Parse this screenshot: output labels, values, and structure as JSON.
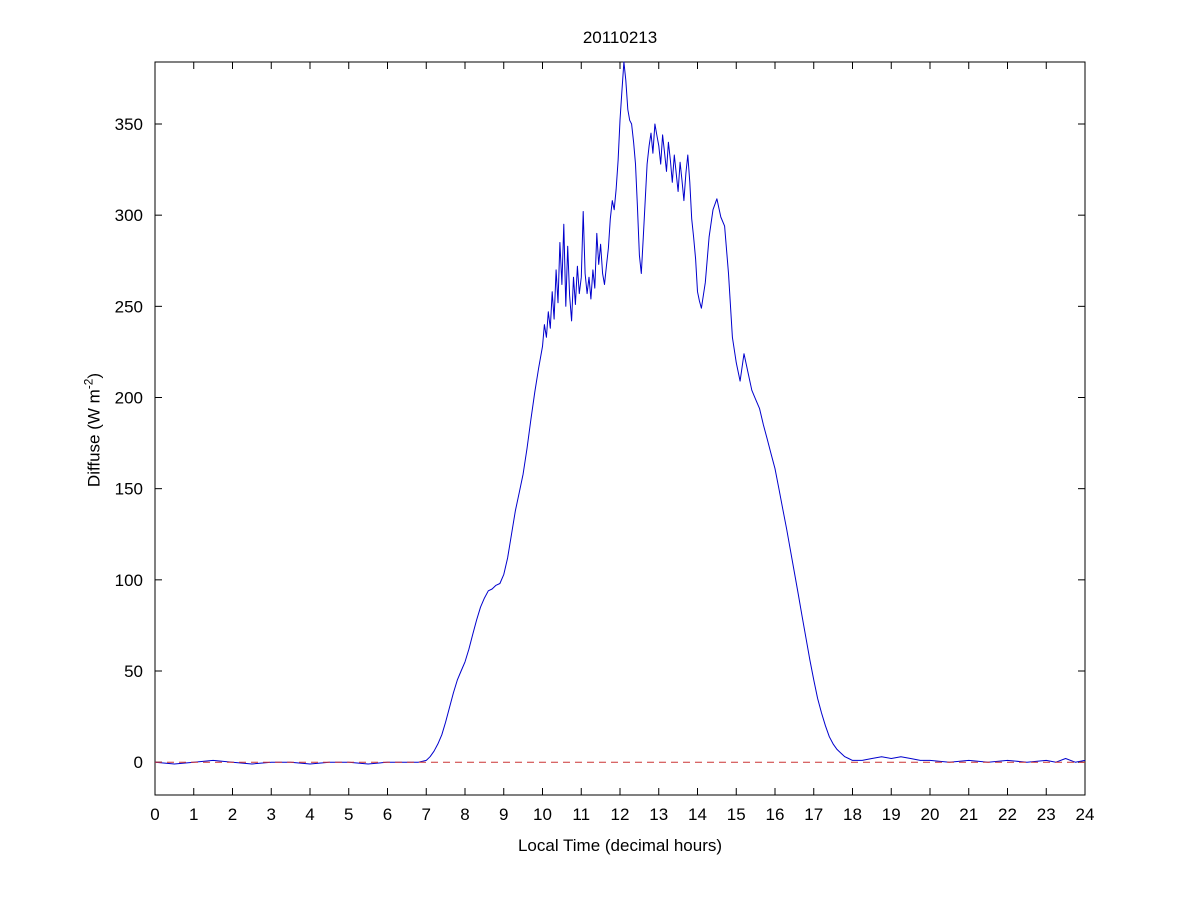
{
  "figure": {
    "background": "#ffffff"
  },
  "chart_data": {
    "type": "line",
    "title": "20110213",
    "xlabel": "Local Time (decimal hours)",
    "ylabel": "Diffuse (W m-2)",
    "ylabel_prefix": "Diffuse (W m",
    "ylabel_sup": "-2",
    "ylabel_suffix": ")",
    "xlim": [
      0,
      24
    ],
    "ylim": [
      -18,
      384
    ],
    "xticks": [
      0,
      1,
      2,
      3,
      4,
      5,
      6,
      7,
      8,
      9,
      10,
      11,
      12,
      13,
      14,
      15,
      16,
      17,
      18,
      19,
      20,
      21,
      22,
      23,
      24
    ],
    "yticks": [
      0,
      50,
      100,
      150,
      200,
      250,
      300,
      350
    ],
    "grid": false,
    "legend_position": "none",
    "axis_color": "#000000",
    "tick_label_color": "#000000",
    "series": [
      {
        "name": "diffuse",
        "color": "#0000cd",
        "style": "solid",
        "points": [
          [
            0,
            0
          ],
          [
            0.5,
            -1
          ],
          [
            1,
            0
          ],
          [
            1.5,
            1
          ],
          [
            2,
            0
          ],
          [
            2.5,
            -1
          ],
          [
            3,
            0
          ],
          [
            3.5,
            0
          ],
          [
            4,
            -1
          ],
          [
            4.5,
            0
          ],
          [
            5,
            0
          ],
          [
            5.5,
            -1
          ],
          [
            6,
            0
          ],
          [
            6.5,
            0
          ],
          [
            6.8,
            0
          ],
          [
            7.0,
            1
          ],
          [
            7.1,
            3
          ],
          [
            7.2,
            6
          ],
          [
            7.3,
            10
          ],
          [
            7.4,
            15
          ],
          [
            7.5,
            22
          ],
          [
            7.6,
            30
          ],
          [
            7.7,
            38
          ],
          [
            7.8,
            45
          ],
          [
            7.9,
            50
          ],
          [
            8.0,
            55
          ],
          [
            8.1,
            62
          ],
          [
            8.2,
            70
          ],
          [
            8.3,
            78
          ],
          [
            8.4,
            85
          ],
          [
            8.5,
            90
          ],
          [
            8.6,
            94
          ],
          [
            8.7,
            95
          ],
          [
            8.8,
            97
          ],
          [
            8.9,
            98
          ],
          [
            9.0,
            103
          ],
          [
            9.1,
            112
          ],
          [
            9.2,
            125
          ],
          [
            9.3,
            138
          ],
          [
            9.4,
            148
          ],
          [
            9.5,
            158
          ],
          [
            9.6,
            172
          ],
          [
            9.7,
            188
          ],
          [
            9.8,
            203
          ],
          [
            9.9,
            216
          ],
          [
            10.0,
            228
          ],
          [
            10.05,
            240
          ],
          [
            10.1,
            233
          ],
          [
            10.15,
            247
          ],
          [
            10.2,
            238
          ],
          [
            10.25,
            258
          ],
          [
            10.3,
            243
          ],
          [
            10.35,
            270
          ],
          [
            10.4,
            252
          ],
          [
            10.45,
            285
          ],
          [
            10.5,
            262
          ],
          [
            10.55,
            295
          ],
          [
            10.6,
            250
          ],
          [
            10.65,
            283
          ],
          [
            10.7,
            256
          ],
          [
            10.75,
            242
          ],
          [
            10.8,
            266
          ],
          [
            10.85,
            251
          ],
          [
            10.9,
            272
          ],
          [
            10.95,
            257
          ],
          [
            11.0,
            266
          ],
          [
            11.05,
            302
          ],
          [
            11.1,
            268
          ],
          [
            11.15,
            257
          ],
          [
            11.2,
            266
          ],
          [
            11.25,
            254
          ],
          [
            11.3,
            270
          ],
          [
            11.35,
            260
          ],
          [
            11.4,
            290
          ],
          [
            11.45,
            273
          ],
          [
            11.5,
            284
          ],
          [
            11.55,
            268
          ],
          [
            11.6,
            262
          ],
          [
            11.65,
            272
          ],
          [
            11.7,
            282
          ],
          [
            11.75,
            298
          ],
          [
            11.8,
            308
          ],
          [
            11.85,
            303
          ],
          [
            11.9,
            314
          ],
          [
            11.95,
            330
          ],
          [
            12.0,
            352
          ],
          [
            12.05,
            368
          ],
          [
            12.1,
            384
          ],
          [
            12.15,
            374
          ],
          [
            12.2,
            358
          ],
          [
            12.25,
            352
          ],
          [
            12.3,
            350
          ],
          [
            12.35,
            340
          ],
          [
            12.4,
            328
          ],
          [
            12.45,
            305
          ],
          [
            12.5,
            278
          ],
          [
            12.55,
            268
          ],
          [
            12.6,
            288
          ],
          [
            12.65,
            308
          ],
          [
            12.7,
            328
          ],
          [
            12.75,
            338
          ],
          [
            12.8,
            345
          ],
          [
            12.85,
            334
          ],
          [
            12.9,
            350
          ],
          [
            12.95,
            344
          ],
          [
            13.0,
            338
          ],
          [
            13.05,
            328
          ],
          [
            13.1,
            344
          ],
          [
            13.15,
            334
          ],
          [
            13.2,
            324
          ],
          [
            13.25,
            340
          ],
          [
            13.3,
            330
          ],
          [
            13.35,
            318
          ],
          [
            13.4,
            333
          ],
          [
            13.45,
            323
          ],
          [
            13.5,
            313
          ],
          [
            13.55,
            329
          ],
          [
            13.6,
            319
          ],
          [
            13.65,
            308
          ],
          [
            13.7,
            323
          ],
          [
            13.75,
            333
          ],
          [
            13.8,
            318
          ],
          [
            13.85,
            298
          ],
          [
            13.9,
            288
          ],
          [
            13.95,
            276
          ],
          [
            14.0,
            258
          ],
          [
            14.05,
            253
          ],
          [
            14.1,
            249
          ],
          [
            14.2,
            263
          ],
          [
            14.3,
            288
          ],
          [
            14.4,
            303
          ],
          [
            14.5,
            309
          ],
          [
            14.6,
            299
          ],
          [
            14.7,
            294
          ],
          [
            14.8,
            268
          ],
          [
            14.9,
            233
          ],
          [
            15.0,
            219
          ],
          [
            15.1,
            209
          ],
          [
            15.2,
            224
          ],
          [
            15.3,
            214
          ],
          [
            15.4,
            204
          ],
          [
            15.5,
            199
          ],
          [
            15.6,
            194
          ],
          [
            15.7,
            185
          ],
          [
            15.8,
            177
          ],
          [
            15.9,
            169
          ],
          [
            16.0,
            161
          ],
          [
            16.1,
            150
          ],
          [
            16.2,
            139
          ],
          [
            16.3,
            128
          ],
          [
            16.4,
            116
          ],
          [
            16.5,
            104
          ],
          [
            16.6,
            92
          ],
          [
            16.7,
            80
          ],
          [
            16.8,
            68
          ],
          [
            16.9,
            56
          ],
          [
            17.0,
            45
          ],
          [
            17.1,
            35
          ],
          [
            17.2,
            27
          ],
          [
            17.3,
            20
          ],
          [
            17.4,
            14
          ],
          [
            17.5,
            10
          ],
          [
            17.6,
            7
          ],
          [
            17.7,
            5
          ],
          [
            17.8,
            3
          ],
          [
            17.9,
            2
          ],
          [
            18.0,
            1
          ],
          [
            18.25,
            1
          ],
          [
            18.5,
            2
          ],
          [
            18.75,
            3
          ],
          [
            19.0,
            2
          ],
          [
            19.25,
            3
          ],
          [
            19.5,
            2
          ],
          [
            19.75,
            1
          ],
          [
            20.0,
            1
          ],
          [
            20.5,
            0
          ],
          [
            21.0,
            1
          ],
          [
            21.5,
            0
          ],
          [
            22.0,
            1
          ],
          [
            22.5,
            0
          ],
          [
            23.0,
            1
          ],
          [
            23.25,
            0
          ],
          [
            23.5,
            2
          ],
          [
            23.75,
            0
          ],
          [
            24.0,
            1
          ]
        ]
      },
      {
        "name": "zero-line",
        "color": "#cc3333",
        "style": "dashed",
        "points": [
          [
            0,
            0
          ],
          [
            24,
            0
          ]
        ]
      }
    ]
  }
}
